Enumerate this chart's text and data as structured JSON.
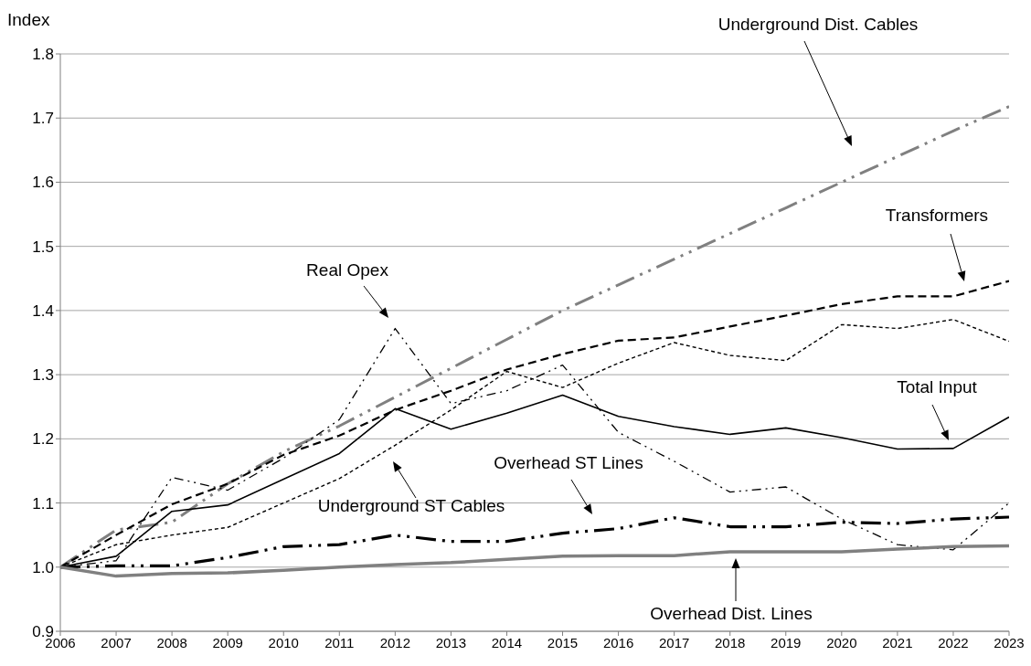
{
  "chart_data": {
    "type": "line",
    "ylabel": "Index",
    "x": [
      2006,
      2007,
      2008,
      2009,
      2010,
      2011,
      2012,
      2013,
      2014,
      2015,
      2016,
      2017,
      2018,
      2019,
      2020,
      2021,
      2022,
      2023
    ],
    "xlim": [
      2006,
      2023
    ],
    "xticks": [
      2006,
      2007,
      2008,
      2009,
      2010,
      2011,
      2012,
      2013,
      2014,
      2015,
      2016,
      2017,
      2018,
      2019,
      2020,
      2021,
      2022,
      2023
    ],
    "ylim": [
      0.9,
      1.8
    ],
    "yticks": [
      0.9,
      {
        "value": 1,
        "label": "1.0"
      },
      1.1,
      1.2,
      1.3,
      1.4,
      1.5,
      1.6,
      1.7,
      1.8
    ],
    "grid": "y",
    "series": [
      {
        "color": "#808080",
        "line_style": "dashed",
        "values": [
          1.0,
          1.058,
          1.07,
          1.13,
          1.18,
          1.22,
          1.265,
          1.31,
          1.355,
          1.4,
          1.44,
          1.48,
          1.52,
          1.56,
          1.6,
          1.64,
          1.68,
          1.718
        ]
      },
      {
        "color": "#000000",
        "line_style": "dashed",
        "values": [
          1.0,
          1.05,
          1.098,
          1.13,
          1.175,
          1.205,
          1.245,
          1.275,
          1.308,
          1.332,
          1.353,
          1.358,
          1.375,
          1.392,
          1.41,
          1.422,
          1.422,
          1.446
        ]
      },
      {
        "color": "#000000",
        "line_style": "dashed",
        "values": [
          1.0,
          1.01,
          1.14,
          1.12,
          1.17,
          1.23,
          1.372,
          1.255,
          1.275,
          1.315,
          1.21,
          1.165,
          1.117,
          1.125,
          1.075,
          1.035,
          1.027,
          1.1
        ]
      },
      {
        "color": "#000000",
        "line_style": "solid",
        "values": [
          1.0,
          1.017,
          1.087,
          1.097,
          1.137,
          1.177,
          1.247,
          1.215,
          1.24,
          1.268,
          1.235,
          1.219,
          1.207,
          1.217,
          1.202,
          1.184,
          1.185,
          1.234
        ]
      },
      {
        "color": "#000000",
        "line_style": "dashed",
        "values": [
          1.0,
          1.002,
          1.002,
          1.015,
          1.032,
          1.035,
          1.05,
          1.04,
          1.04,
          1.053,
          1.06,
          1.077,
          1.063,
          1.063,
          1.07,
          1.068,
          1.075,
          1.078
        ]
      },
      {
        "color": "#000000",
        "line_style": "dotted",
        "values": [
          1.0,
          1.035,
          1.05,
          1.062,
          1.1,
          1.138,
          1.19,
          1.245,
          1.305,
          1.28,
          1.318,
          1.35,
          1.33,
          1.322,
          1.378,
          1.372,
          1.386,
          1.352
        ]
      },
      {
        "color": "#808080",
        "line_style": "solid",
        "values": [
          1.0,
          0.986,
          0.99,
          0.991,
          0.995,
          1.0,
          1.004,
          1.007,
          1.012,
          1.017,
          1.018,
          1.018,
          1.024,
          1.024,
          1.024,
          1.028,
          1.032,
          1.033
        ]
      }
    ],
    "annotations": [
      "Underground Dist. Cables",
      "Transformers",
      "Real Opex",
      "Total Input",
      "Overhead ST Lines",
      "Underground ST Cables",
      "Overhead Dist. Lines"
    ]
  }
}
